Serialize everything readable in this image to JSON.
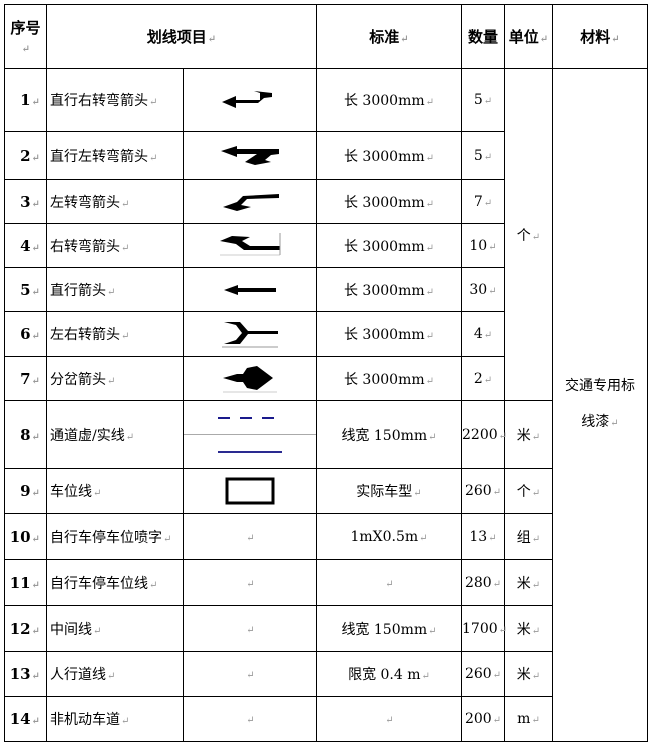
{
  "header": {
    "no": "序号",
    "item": "划线项目",
    "standard": "标准",
    "qty": "数量",
    "unit": "单位",
    "material": "材料"
  },
  "rows": [
    {
      "no": "1",
      "name": "直行右转弯箭头",
      "icon": "straight-right-arrow",
      "standard": "长 3000mm",
      "qty": "5"
    },
    {
      "no": "2",
      "name": "直行左转弯箭头",
      "icon": "straight-left-arrow",
      "standard": "长 3000mm",
      "qty": "5"
    },
    {
      "no": "3",
      "name": "左转弯箭头",
      "icon": "left-turn-arrow",
      "standard": "长 3000mm",
      "qty": "7"
    },
    {
      "no": "4",
      "name": "右转弯箭头",
      "icon": "right-turn-arrow",
      "standard": "长 3000mm",
      "qty": "10"
    },
    {
      "no": "5",
      "name": "直行箭头",
      "icon": "straight-arrow",
      "standard": "长 3000mm",
      "qty": "30"
    },
    {
      "no": "6",
      "name": "左右转箭头",
      "icon": "left-right-arrow",
      "standard": "长 3000mm",
      "qty": "4"
    },
    {
      "no": "7",
      "name": "分岔箭头",
      "icon": "fork-arrow",
      "standard": "长 3000mm",
      "qty": "2"
    },
    {
      "no": "8",
      "name": "通道虚/实线",
      "icon": "dashed-solid-line",
      "standard": "线宽 150mm",
      "qty": "2200",
      "unit": "米"
    },
    {
      "no": "9",
      "name": "车位线",
      "icon": "parking-rectangle",
      "standard": "实际车型",
      "qty": "260",
      "unit": "个"
    },
    {
      "no": "10",
      "name": "自行车停车位喷字",
      "standard": "1mX0.5m",
      "qty": "13",
      "unit": "组"
    },
    {
      "no": "11",
      "name": "自行车停车位线",
      "standard": "",
      "qty": "280",
      "unit": "米"
    },
    {
      "no": "12",
      "name": "中间线",
      "standard": "线宽 150mm",
      "qty": "1700",
      "unit": "米"
    },
    {
      "no": "13",
      "name": "人行道线",
      "standard": "限宽 0.4 m",
      "qty": "260",
      "unit": "米"
    },
    {
      "no": "14",
      "name": "非机动车道",
      "standard": "",
      "qty": "200",
      "unit": "m"
    }
  ],
  "merged_unit": "个",
  "material_line1": "交通专用标",
  "material_line2": "线漆",
  "colors": {
    "line_blue": "#1a1a8c"
  }
}
